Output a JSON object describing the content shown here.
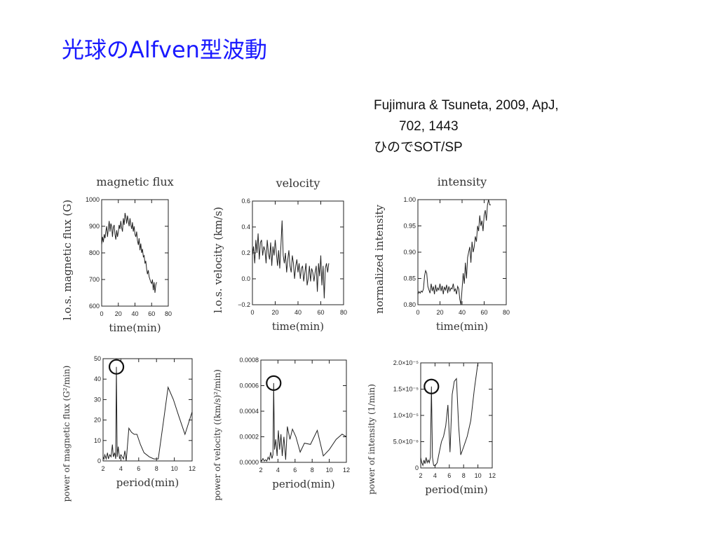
{
  "slide": {
    "title": "光球のAlfven型波動",
    "citation_line1": "Fujimura & Tsuneta, 2009, ApJ,",
    "citation_line2": "702, 1443",
    "citation_line3": "ひのでSOT/SP"
  },
  "colors": {
    "title": "#1a1aff",
    "ink": "#222222"
  },
  "chart_data": [
    {
      "type": "line",
      "title": "magnetic flux",
      "xlabel": "time(min)",
      "ylabel": "l.o.s. magnetic flux (G)",
      "xlim": [
        0,
        80
      ],
      "ylim": [
        600,
        1000
      ],
      "xticks": [
        0,
        20,
        40,
        60,
        80
      ],
      "xtick_labels": [
        "0",
        "20",
        "40",
        "60",
        "80"
      ],
      "yticks": [
        600,
        700,
        800,
        900,
        1000
      ],
      "ytick_labels": [
        "600",
        "700",
        "800",
        "900",
        "1000"
      ],
      "x": [
        0,
        1,
        2,
        3,
        4,
        5,
        6,
        7,
        8,
        9,
        10,
        11,
        12,
        13,
        14,
        15,
        16,
        17,
        18,
        19,
        20,
        21,
        22,
        23,
        24,
        25,
        26,
        27,
        28,
        29,
        30,
        31,
        32,
        33,
        34,
        35,
        36,
        37,
        38,
        39,
        40,
        41,
        42,
        43,
        44,
        45,
        46,
        47,
        48,
        49,
        50,
        51,
        52,
        53,
        54,
        55,
        56,
        57,
        58,
        59,
        60,
        61,
        62,
        63,
        64,
        65,
        66
      ],
      "y": [
        830,
        860,
        840,
        870,
        855,
        880,
        900,
        860,
        890,
        920,
        880,
        910,
        900,
        860,
        895,
        905,
        870,
        850,
        885,
        860,
        880,
        905,
        890,
        920,
        895,
        880,
        930,
        905,
        950,
        935,
        910,
        940,
        920,
        900,
        930,
        905,
        890,
        915,
        880,
        900,
        870,
        860,
        880,
        845,
        830,
        855,
        810,
        835,
        800,
        815,
        785,
        790,
        760,
        770,
        740,
        720,
        735,
        710,
        700,
        690,
        685,
        700,
        660,
        690,
        650,
        680,
        690
      ]
    },
    {
      "type": "line",
      "title": "velocity",
      "xlabel": "time(min)",
      "ylabel": "l.o.s. velocity (km/s)",
      "xlim": [
        0,
        80
      ],
      "ylim": [
        -0.2,
        0.6
      ],
      "xticks": [
        0,
        20,
        40,
        60,
        80
      ],
      "xtick_labels": [
        "0",
        "20",
        "40",
        "60",
        "80"
      ],
      "yticks": [
        -0.2,
        0.0,
        0.2,
        0.4,
        0.6
      ],
      "ytick_labels": [
        "−0.2",
        "0.0",
        "0.2",
        "0.4",
        "0.6"
      ],
      "x": [
        0,
        1,
        2,
        3,
        4,
        5,
        6,
        7,
        8,
        9,
        10,
        11,
        12,
        13,
        14,
        15,
        16,
        17,
        18,
        19,
        20,
        21,
        22,
        23,
        24,
        25,
        26,
        27,
        28,
        29,
        30,
        31,
        32,
        33,
        34,
        35,
        36,
        37,
        38,
        39,
        40,
        41,
        42,
        43,
        44,
        45,
        46,
        47,
        48,
        49,
        50,
        51,
        52,
        53,
        54,
        55,
        56,
        57,
        58,
        59,
        60,
        61,
        62,
        63,
        64,
        65,
        66,
        67
      ],
      "y": [
        0.18,
        0.25,
        0.12,
        0.3,
        0.2,
        0.35,
        0.15,
        0.28,
        0.3,
        0.18,
        0.25,
        0.22,
        0.12,
        0.3,
        0.2,
        0.15,
        0.28,
        0.1,
        0.25,
        0.18,
        0.3,
        0.2,
        0.1,
        0.22,
        0.08,
        0.25,
        0.45,
        0.18,
        0.12,
        0.2,
        0.05,
        0.15,
        0.22,
        0.1,
        0.05,
        0.18,
        0.12,
        0.0,
        0.1,
        0.15,
        0.05,
        0.12,
        0.0,
        0.08,
        0.1,
        -0.02,
        0.05,
        0.12,
        -0.05,
        0.0,
        0.1,
        -0.02,
        0.08,
        0.05,
        -0.02,
        0.05,
        0.1,
        -0.1,
        0.12,
        0.02,
        0.18,
        -0.05,
        0.1,
        -0.15,
        0.08,
        0.12,
        0.05,
        0.12
      ]
    },
    {
      "type": "line",
      "title": "intensity",
      "xlabel": "time(min)",
      "ylabel": "normalized intensity",
      "xlim": [
        0,
        80
      ],
      "ylim": [
        0.8,
        1.0
      ],
      "xticks": [
        0,
        20,
        40,
        60,
        80
      ],
      "xtick_labels": [
        "0",
        "20",
        "40",
        "60",
        "80"
      ],
      "yticks": [
        0.8,
        0.85,
        0.9,
        0.95,
        1.0
      ],
      "ytick_labels": [
        "0.80",
        "0.85",
        "0.90",
        "0.95",
        "1.00"
      ],
      "x": [
        0,
        1,
        2,
        3,
        4,
        5,
        6,
        7,
        8,
        9,
        10,
        11,
        12,
        13,
        14,
        15,
        16,
        17,
        18,
        19,
        20,
        21,
        22,
        23,
        24,
        25,
        26,
        27,
        28,
        29,
        30,
        31,
        32,
        33,
        34,
        35,
        36,
        37,
        38,
        39,
        40,
        41,
        42,
        43,
        44,
        45,
        46,
        47,
        48,
        49,
        50,
        51,
        52,
        53,
        54,
        55,
        56,
        57,
        58,
        59,
        60,
        61,
        62,
        63,
        64,
        65,
        66
      ],
      "y": [
        0.82,
        0.825,
        0.822,
        0.826,
        0.824,
        0.83,
        0.855,
        0.865,
        0.86,
        0.835,
        0.828,
        0.822,
        0.84,
        0.826,
        0.835,
        0.82,
        0.838,
        0.825,
        0.832,
        0.828,
        0.84,
        0.826,
        0.836,
        0.82,
        0.834,
        0.828,
        0.838,
        0.822,
        0.835,
        0.826,
        0.832,
        0.83,
        0.84,
        0.826,
        0.83,
        0.82,
        0.835,
        0.83,
        0.81,
        0.8,
        0.83,
        0.86,
        0.84,
        0.88,
        0.85,
        0.89,
        0.9,
        0.91,
        0.88,
        0.92,
        0.9,
        0.91,
        0.93,
        0.92,
        0.95,
        0.94,
        0.97,
        0.95,
        0.96,
        0.94,
        0.97,
        0.98,
        0.96,
        0.99,
        1.0,
        0.99,
        0.99
      ]
    },
    {
      "type": "line",
      "title": "",
      "xlabel": "period(min)",
      "ylabel": "power of magnetic flux (G²/min)",
      "xlim": [
        2,
        12
      ],
      "ylim": [
        0,
        50
      ],
      "xticks": [
        2,
        4,
        6,
        8,
        10,
        12
      ],
      "xtick_labels": [
        "2",
        "4",
        "6",
        "8",
        "10",
        "12"
      ],
      "yticks": [
        0,
        10,
        20,
        30,
        40,
        50
      ],
      "ytick_labels": [
        "0",
        "10",
        "20",
        "30",
        "40",
        "50"
      ],
      "peak_marker": {
        "x": 3.5,
        "y": 46
      },
      "x": [
        2.0,
        2.1,
        2.2,
        2.35,
        2.5,
        2.6,
        2.75,
        2.9,
        3.05,
        3.15,
        3.3,
        3.42,
        3.5,
        3.58,
        3.7,
        3.85,
        4.0,
        4.15,
        4.3,
        4.45,
        4.6,
        4.9,
        5.2,
        5.5,
        5.8,
        6.2,
        6.6,
        7.2,
        7.7,
        8.2,
        8.8,
        9.3,
        9.9,
        10.5,
        11.2,
        12.0
      ],
      "y": [
        2,
        1,
        3,
        1,
        4,
        1,
        3,
        2,
        8,
        2,
        4,
        1,
        46,
        2,
        7,
        1,
        3,
        2,
        1,
        5,
        0,
        16,
        14,
        13,
        13,
        8,
        4,
        2,
        1,
        1,
        20,
        36,
        30,
        22,
        13,
        24
      ]
    },
    {
      "type": "line",
      "title": "",
      "xlabel": "period(min)",
      "ylabel": "power of velocity ((km/s)²/min)",
      "xlim": [
        2,
        12
      ],
      "ylim": [
        0,
        0.0008
      ],
      "xticks": [
        2,
        4,
        6,
        8,
        10,
        12
      ],
      "xtick_labels": [
        "2",
        "4",
        "6",
        "8",
        "10",
        "12"
      ],
      "yticks": [
        0,
        0.0002,
        0.0004,
        0.0006,
        0.0008
      ],
      "ytick_labels": [
        "0.0000",
        "0.0002",
        "0.0004",
        "0.0006",
        "0.0008"
      ],
      "peak_marker": {
        "x": 3.5,
        "y": 0.00062
      },
      "x": [
        2.0,
        2.1,
        2.25,
        2.4,
        2.55,
        2.7,
        2.85,
        3.0,
        3.15,
        3.3,
        3.42,
        3.5,
        3.6,
        3.75,
        3.9,
        4.05,
        4.2,
        4.35,
        4.5,
        4.7,
        4.9,
        5.1,
        5.4,
        5.7,
        6.1,
        6.6,
        7.1,
        7.8,
        8.6,
        9.3,
        10.0,
        10.8,
        11.5,
        12.0
      ],
      "y": [
        2e-05,
        1e-05,
        3e-05,
        1e-05,
        2e-05,
        1e-05,
        4e-05,
        2e-05,
        8e-05,
        3e-05,
        6e-05,
        0.00062,
        0.0001,
        0.00018,
        5e-05,
        0.00025,
        0.0001,
        0.00022,
        5e-05,
        0.0002,
        2e-05,
        0.00028,
        0.00018,
        0.00026,
        0.0002,
        8e-05,
        0.00015,
        0.00014,
        0.00025,
        5e-05,
        0.0001,
        0.00018,
        0.00022,
        0.0002
      ]
    },
    {
      "type": "line",
      "title": "",
      "xlabel": "period(min)",
      "ylabel": "power of intensity (1/min)",
      "xlim": [
        2,
        12
      ],
      "ylim": [
        0,
        2e-05
      ],
      "xticks": [
        2,
        4,
        6,
        8,
        10,
        12
      ],
      "xtick_labels": [
        "2",
        "4",
        "6",
        "8",
        "10",
        "12"
      ],
      "yticks": [
        0,
        5e-06,
        1e-05,
        1.5e-05,
        2e-05
      ],
      "ytick_labels": [
        "0",
        "5.0×10⁻⁶",
        "1.0×10⁻⁵",
        "1.5×10⁻⁵",
        "2.0×10⁻⁵"
      ],
      "peak_marker": {
        "x": 3.5,
        "y": 1.55e-05
      },
      "x": [
        2.0,
        2.15,
        2.3,
        2.45,
        2.6,
        2.75,
        2.9,
        3.05,
        3.2,
        3.35,
        3.5,
        3.65,
        3.8,
        4.0,
        4.3,
        4.6,
        4.9,
        5.2,
        5.5,
        5.8,
        6.1,
        6.4,
        6.7,
        7.0,
        7.3,
        7.6,
        8.0,
        8.5,
        9.0,
        9.5,
        10.0
      ],
      "y": [
        2e-06,
        1e-06,
        5e-07,
        1.5e-06,
        8e-07,
        2e-06,
        1e-06,
        1.5e-06,
        1e-06,
        2e-06,
        1.55e-05,
        2e-06,
        5e-07,
        4e-07,
        1e-06,
        3e-06,
        5e-06,
        6e-06,
        8e-06,
        1.2e-05,
        3e-06,
        1.4e-05,
        1.65e-05,
        1.7e-05,
        8e-06,
        2.5e-06,
        4e-06,
        6e-06,
        9e-06,
        1.5e-05,
        2e-05
      ]
    }
  ]
}
